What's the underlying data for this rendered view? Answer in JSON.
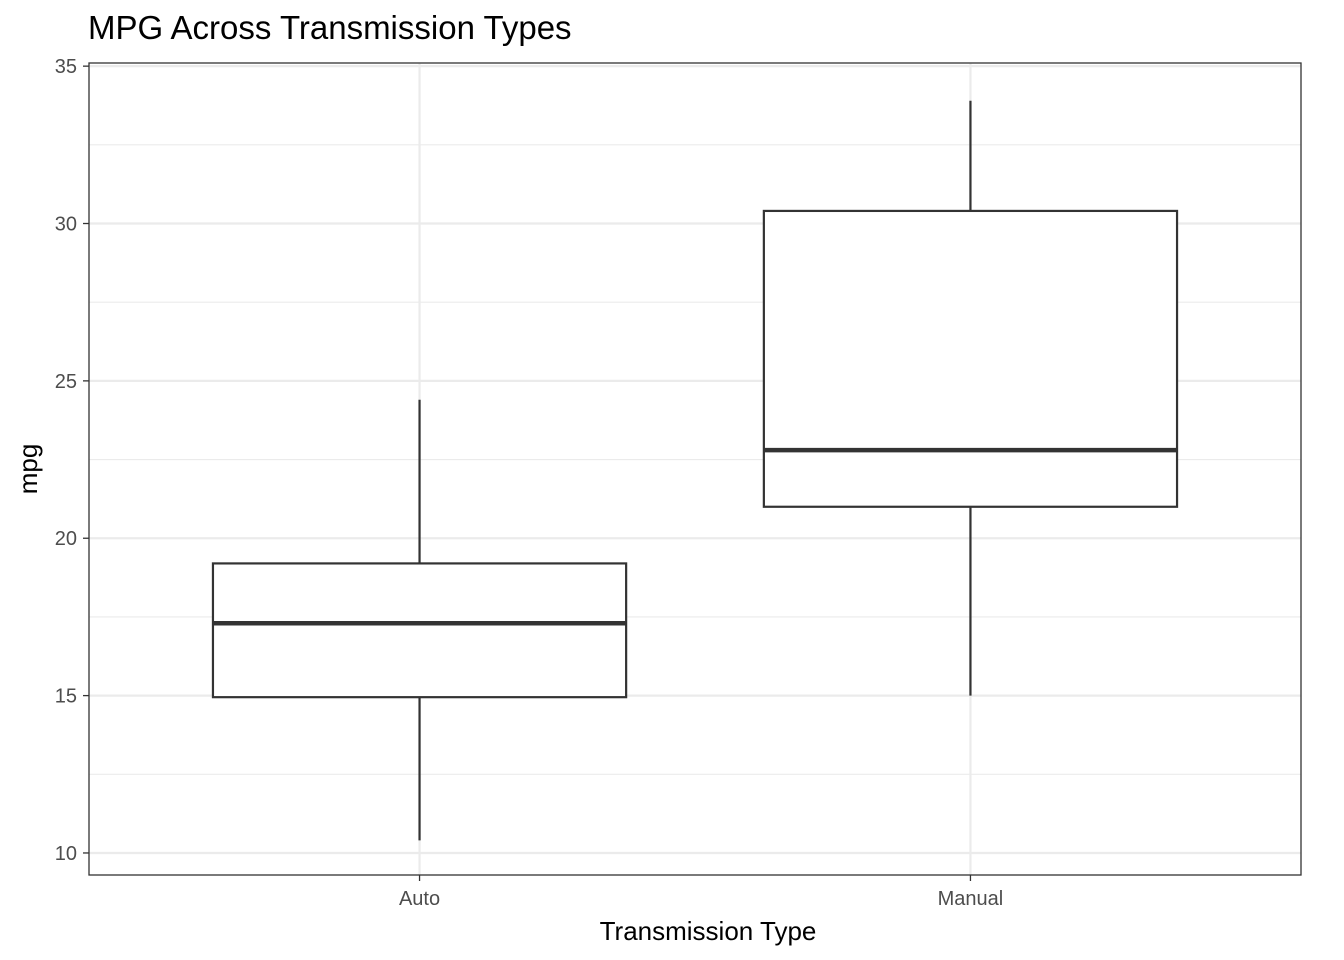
{
  "chart_data": {
    "type": "boxplot",
    "title": "MPG Across Transmission Types",
    "xlabel": "Transmission Type",
    "ylabel": "mpg",
    "ylim": [
      9.3,
      35.1
    ],
    "yticks": [
      10,
      15,
      20,
      25,
      30,
      35
    ],
    "categories": [
      "Auto",
      "Manual"
    ],
    "boxes": [
      {
        "category": "Auto",
        "min": 10.4,
        "q1": 14.95,
        "median": 17.3,
        "q3": 19.2,
        "max": 24.4
      },
      {
        "category": "Manual",
        "min": 15.0,
        "q1": 21.0,
        "median": 22.8,
        "q3": 30.4,
        "max": 33.9
      }
    ],
    "grid": true,
    "legend": "none",
    "colors": {
      "box_stroke": "#333333",
      "grid": "#ebebeb",
      "panel_border": "#333333",
      "background": "#ffffff"
    }
  }
}
